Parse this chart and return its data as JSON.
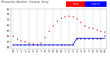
{
  "title_left": "Milwaukee Weather  Outdoor Temp",
  "title_fontsize": 2.8,
  "background_color": "#ffffff",
  "grid_color": "#aaaaaa",
  "xlabel_fontsize": 2.5,
  "ylabel_fontsize": 2.5,
  "ylim": [
    43,
    80
  ],
  "xlim": [
    0,
    23
  ],
  "temp_color": "#cc0000",
  "dew_color": "#0000cc",
  "hours": [
    0,
    1,
    2,
    3,
    4,
    5,
    6,
    7,
    8,
    9,
    10,
    11,
    12,
    13,
    14,
    15,
    16,
    17,
    18,
    19,
    20,
    21,
    22,
    23
  ],
  "temp_values": [
    55,
    53,
    51,
    50,
    49,
    48,
    47,
    49,
    54,
    60,
    65,
    69,
    72,
    73,
    74,
    73,
    71,
    68,
    65,
    63,
    62,
    61,
    60,
    59
  ],
  "dew_values": [
    47,
    47,
    47,
    47,
    47,
    47,
    47,
    47,
    47,
    47,
    47,
    47,
    47,
    47,
    47,
    47,
    53,
    53,
    53,
    53,
    53,
    53,
    53,
    55
  ],
  "tick_hours": [
    0,
    1,
    2,
    3,
    4,
    5,
    6,
    7,
    8,
    9,
    10,
    11,
    12,
    13,
    14,
    15,
    16,
    17,
    18,
    19,
    20,
    21,
    22,
    23
  ],
  "tick_labels": [
    "12",
    "1",
    "2",
    "3",
    "4",
    "5",
    "6",
    "7",
    "8",
    "9",
    "10",
    "11",
    "12",
    "1",
    "2",
    "3",
    "4",
    "5",
    "6",
    "7",
    "8",
    "9",
    "10",
    "11"
  ],
  "yticks": [
    45,
    50,
    55,
    60,
    65,
    70,
    75,
    80
  ],
  "ytick_labels": [
    "45",
    "50",
    "55",
    "60",
    "65",
    "70",
    "75",
    "80"
  ],
  "legend_temp_label": "Temp",
  "legend_dew_label": "Dew Pt",
  "legend_temp_bg": "#ff0000",
  "legend_dew_bg": "#0000ff",
  "legend_text_color": "#ffffff"
}
